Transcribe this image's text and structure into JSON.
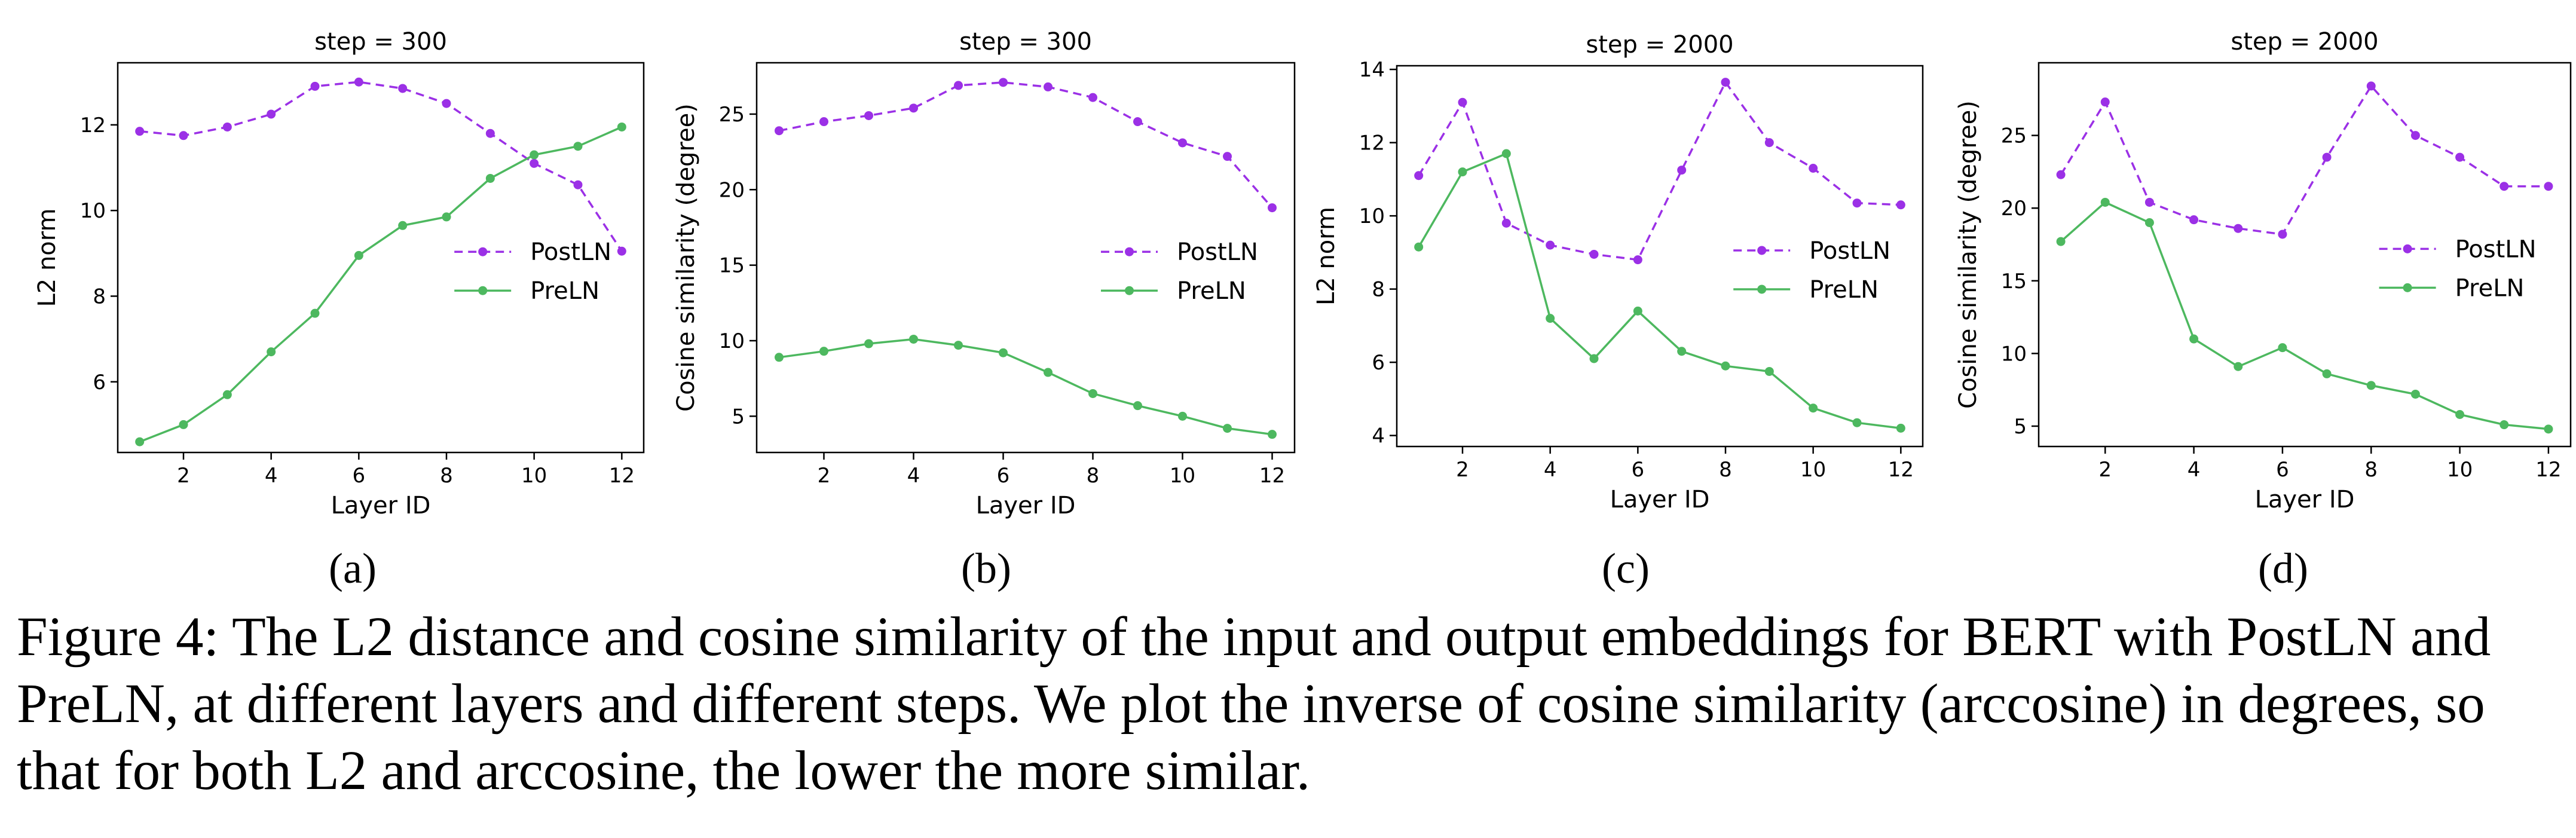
{
  "colors": {
    "postln": "#9b30e6",
    "preln": "#4db85f"
  },
  "caption": "Figure 4: The L2 distance and cosine similarity of the input and output embeddings for BERT with PostLN and PreLN, at different layers and different steps. We plot the inverse of cosine similarity (arccosine) in degrees, so that for both L2 and arccosine, the lower the more similar.",
  "chart_data": [
    {
      "type": "line",
      "panel_label": "(a)",
      "title": "step = 300",
      "xlabel": "Layer ID",
      "ylabel": "L2 norm",
      "x": [
        1,
        2,
        3,
        4,
        5,
        6,
        7,
        8,
        9,
        10,
        11,
        12
      ],
      "xticks": [
        2,
        4,
        6,
        8,
        10,
        12
      ],
      "xlim": [
        0.5,
        12.5
      ],
      "yticks": [
        6,
        8,
        10,
        12
      ],
      "ylim": [
        4.35,
        13.45
      ],
      "legend": "center-right",
      "series": [
        {
          "name": "PostLN",
          "style": "dashed",
          "values": [
            11.85,
            11.75,
            11.95,
            12.25,
            12.9,
            13.0,
            12.85,
            12.5,
            11.8,
            11.1,
            10.6,
            9.05
          ]
        },
        {
          "name": "PreLN",
          "style": "solid",
          "values": [
            4.6,
            5.0,
            5.7,
            6.7,
            7.6,
            8.95,
            9.65,
            9.85,
            10.75,
            11.3,
            11.5,
            11.95
          ]
        }
      ]
    },
    {
      "type": "line",
      "panel_label": "(b)",
      "title": "step = 300",
      "xlabel": "Layer ID",
      "ylabel": "Cosine similarity (degree)",
      "x": [
        1,
        2,
        3,
        4,
        5,
        6,
        7,
        8,
        9,
        10,
        11,
        12
      ],
      "xticks": [
        2,
        4,
        6,
        8,
        10,
        12
      ],
      "xlim": [
        0.5,
        12.5
      ],
      "yticks": [
        5,
        10,
        15,
        20,
        25
      ],
      "ylim": [
        2.6,
        28.4
      ],
      "legend": "center-right",
      "series": [
        {
          "name": "PostLN",
          "style": "dashed",
          "values": [
            23.9,
            24.5,
            24.9,
            25.4,
            26.9,
            27.1,
            26.8,
            26.1,
            24.5,
            23.1,
            22.2,
            18.8
          ]
        },
        {
          "name": "PreLN",
          "style": "solid",
          "values": [
            8.9,
            9.3,
            9.8,
            10.1,
            9.7,
            9.2,
            7.9,
            6.5,
            5.7,
            5.0,
            4.2,
            3.8
          ]
        }
      ]
    },
    {
      "type": "line",
      "panel_label": "(c)",
      "title": "step = 2000",
      "xlabel": "Layer ID",
      "ylabel": "L2 norm",
      "x": [
        1,
        2,
        3,
        4,
        5,
        6,
        7,
        8,
        9,
        10,
        11,
        12
      ],
      "xticks": [
        2,
        4,
        6,
        8,
        10,
        12
      ],
      "xlim": [
        0.5,
        12.5
      ],
      "yticks": [
        4,
        6,
        8,
        10,
        12,
        14
      ],
      "ylim": [
        3.7,
        14.1
      ],
      "legend": "center-right",
      "series": [
        {
          "name": "PostLN",
          "style": "dashed",
          "values": [
            11.1,
            13.1,
            9.8,
            9.2,
            8.95,
            8.8,
            11.25,
            13.65,
            12.0,
            11.3,
            10.35,
            10.3
          ]
        },
        {
          "name": "PreLN",
          "style": "solid",
          "values": [
            9.15,
            11.2,
            11.7,
            7.2,
            6.1,
            7.4,
            6.3,
            5.9,
            5.75,
            4.75,
            4.35,
            4.2
          ]
        }
      ]
    },
    {
      "type": "line",
      "panel_label": "(d)",
      "title": "step = 2000",
      "xlabel": "Layer ID",
      "ylabel": "Cosine similarity (degree)",
      "x": [
        1,
        2,
        3,
        4,
        5,
        6,
        7,
        8,
        9,
        10,
        11,
        12
      ],
      "xticks": [
        2,
        4,
        6,
        8,
        10,
        12
      ],
      "xlim": [
        0.5,
        12.5
      ],
      "yticks": [
        5,
        10,
        15,
        20,
        25
      ],
      "ylim": [
        3.6,
        30.0
      ],
      "legend": "center-right",
      "series": [
        {
          "name": "PostLN",
          "style": "dashed",
          "values": [
            22.3,
            27.3,
            20.4,
            19.2,
            18.6,
            18.2,
            23.5,
            28.4,
            25.0,
            23.5,
            21.5,
            21.5
          ]
        },
        {
          "name": "PreLN",
          "style": "solid",
          "values": [
            17.7,
            20.4,
            19.0,
            11.0,
            9.1,
            10.4,
            8.6,
            7.8,
            7.2,
            5.8,
            5.1,
            4.8
          ]
        }
      ]
    }
  ]
}
